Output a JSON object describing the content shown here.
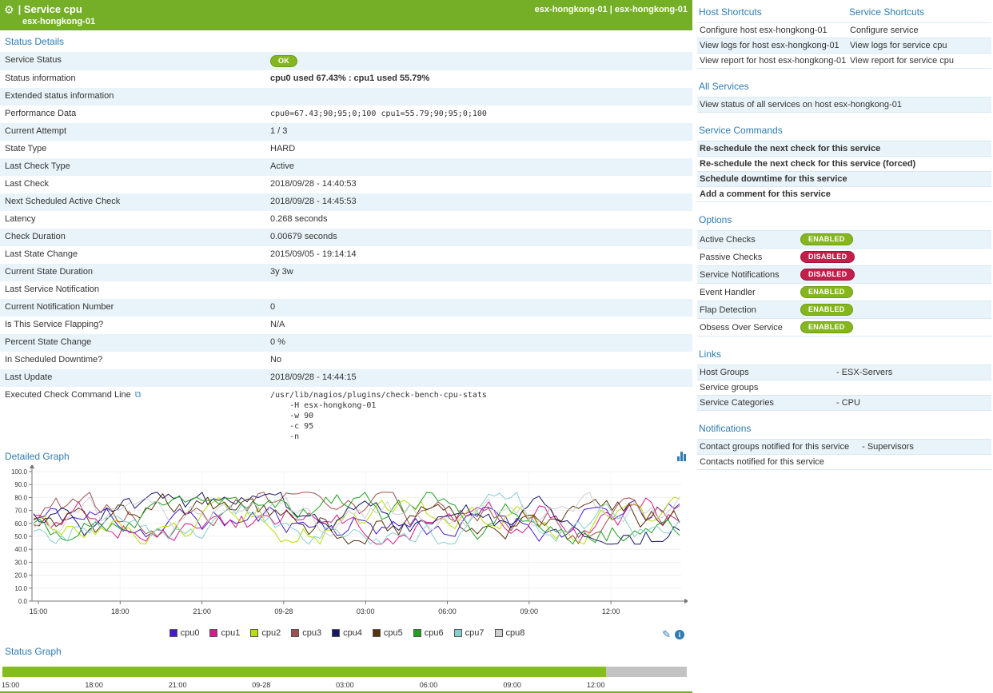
{
  "icons": {
    "gear": "⚙",
    "command": "⧉",
    "pencil": "✎",
    "info": "i"
  },
  "colors": {
    "header_green": "#74af27",
    "heading_blue": "#2e7cb0",
    "row_stripe": "#e9f4fa",
    "enabled_green": "#85b620",
    "disabled_red": "#c41f4b",
    "status_ok_green": "#83bd20",
    "status_gray": "#c3c3c3"
  },
  "header": {
    "title": "| Service cpu",
    "subtitle": "esx-hongkong-01",
    "right": "esx-hongkong-01 | esx-hongkong-01"
  },
  "status_details": {
    "title": "Status Details",
    "rows": [
      {
        "label": "Service Status",
        "badge": "OK"
      },
      {
        "label": "Status information",
        "value": "cpu0 used 67.43% : cpu1 used 55.79%",
        "bold": true
      },
      {
        "label": "Extended status information",
        "value": ""
      },
      {
        "label": "Performance Data",
        "value": "cpu0=67.43;90;95;0;100 cpu1=55.79;90;95;0;100",
        "mono": true
      },
      {
        "label": "Current Attempt",
        "value": "1 / 3"
      },
      {
        "label": "State Type",
        "value": "HARD"
      },
      {
        "label": "Last Check Type",
        "value": "Active"
      },
      {
        "label": "Last Check",
        "value": "2018/09/28 - 14:40:53"
      },
      {
        "label": "Next Scheduled Active Check",
        "value": "2018/09/28 - 14:45:53"
      },
      {
        "label": "Latency",
        "value": "0.268 seconds"
      },
      {
        "label": "Check Duration",
        "value": "0.00679 seconds"
      },
      {
        "label": "Last State Change",
        "value": "2015/09/05 - 19:14:14"
      },
      {
        "label": "Current State Duration",
        "value": "3y 3w"
      },
      {
        "label": "Last Service Notification",
        "value": ""
      },
      {
        "label": "Current Notification Number",
        "value": "0"
      },
      {
        "label": "Is This Service Flapping?",
        "value": "N/A"
      },
      {
        "label": "Percent State Change",
        "value": "0 %"
      },
      {
        "label": "In Scheduled Downtime?",
        "value": "No"
      },
      {
        "label": "Last Update",
        "value": "2018/09/28 - 14:44:15"
      },
      {
        "label": "Executed Check Command Line",
        "has_icon": true,
        "mono": true,
        "value": "/usr/lib/nagios/plugins/check-bench-cpu-stats\n    -H esx-hongkong-01\n    -w 90\n    -c 95\n    -n"
      }
    ]
  },
  "detailed_graph": {
    "title": "Detailed Graph",
    "y_ticks": [
      "100.0",
      "90.0",
      "80.0",
      "70.0",
      "60.0",
      "50.0",
      "40.0",
      "30.0",
      "20.0",
      "10.0",
      "0.0"
    ],
    "x_ticks": [
      "15:00",
      "18:00",
      "21:00",
      "09-28",
      "03:00",
      "06:00",
      "09:00",
      "12:00"
    ],
    "ylim": [
      0,
      100
    ],
    "series": [
      {
        "name": "cpu0",
        "color": "#4618cf"
      },
      {
        "name": "cpu1",
        "color": "#d61a8c"
      },
      {
        "name": "cpu2",
        "color": "#b6e000"
      },
      {
        "name": "cpu3",
        "color": "#a04f4f"
      },
      {
        "name": "cpu4",
        "color": "#171766"
      },
      {
        "name": "cpu5",
        "color": "#54330e"
      },
      {
        "name": "cpu6",
        "color": "#1fa11f"
      },
      {
        "name": "cpu7",
        "color": "#86cfcf"
      },
      {
        "name": "cpu8",
        "color": "#cfcfcf"
      }
    ],
    "gen": {
      "seed": 11,
      "points": 116,
      "mean": 62,
      "jitter": 20,
      "min": 44,
      "max": 84,
      "pull": 0.12
    }
  },
  "status_graph": {
    "title": "Status Graph",
    "x_ticks": [
      "15:00",
      "18:00",
      "21:00",
      "09-28",
      "03:00",
      "06:00",
      "09:00",
      "12:00"
    ],
    "segments": [
      {
        "state": "ok",
        "color": "#83bd20",
        "fraction": 0.882
      },
      {
        "state": "nodata",
        "color": "#c3c3c3",
        "fraction": 0.118
      }
    ]
  },
  "shortcuts": {
    "host_header": "Host Shortcuts",
    "service_header": "Service Shortcuts",
    "rows": [
      {
        "host": "Configure host esx-hongkong-01",
        "service": "Configure service"
      },
      {
        "host": "View logs for host esx-hongkong-01",
        "service": "View logs for service cpu"
      },
      {
        "host": "View report for host esx-hongkong-01",
        "service": "View report for service cpu"
      }
    ]
  },
  "all_services": {
    "title": "All Services",
    "items": [
      "View status of all services on host esx-hongkong-01"
    ]
  },
  "service_commands": {
    "title": "Service Commands",
    "items": [
      "Re-schedule the next check for this service",
      "Re-schedule the next check for this service (forced)",
      "Schedule downtime for this service",
      "Add a comment for this service"
    ]
  },
  "options": {
    "title": "Options",
    "items": [
      {
        "label": "Active Checks",
        "state": "ENABLED"
      },
      {
        "label": "Passive Checks",
        "state": "DISABLED"
      },
      {
        "label": "Service Notifications",
        "state": "DISABLED"
      },
      {
        "label": "Event Handler",
        "state": "ENABLED"
      },
      {
        "label": "Flap Detection",
        "state": "ENABLED"
      },
      {
        "label": "Obsess Over Service",
        "state": "ENABLED"
      }
    ]
  },
  "links": {
    "title": "Links",
    "items": [
      {
        "label": "Host Groups",
        "value": "- ESX-Servers"
      },
      {
        "label": "Service groups",
        "value": ""
      },
      {
        "label": "Service Categories",
        "value": "- CPU"
      }
    ]
  },
  "notifications": {
    "title": "Notifications",
    "items": [
      {
        "label": "Contact groups notified for this service",
        "value": "- Supervisors"
      },
      {
        "label": "Contacts notified for this service",
        "value": ""
      }
    ]
  },
  "chart_data": {
    "type": "line",
    "title": "Detailed Graph",
    "x_tick_labels": [
      "15:00",
      "18:00",
      "21:00",
      "09-28",
      "03:00",
      "06:00",
      "09:00",
      "12:00"
    ],
    "ylim": [
      0,
      100
    ],
    "series_names": [
      "cpu0",
      "cpu1",
      "cpu2",
      "cpu3",
      "cpu4",
      "cpu5",
      "cpu6",
      "cpu7",
      "cpu8"
    ],
    "value_summary": "9 noisy CPU-usage lines oscillating roughly between 45 and 82 percent, mean about 62"
  }
}
